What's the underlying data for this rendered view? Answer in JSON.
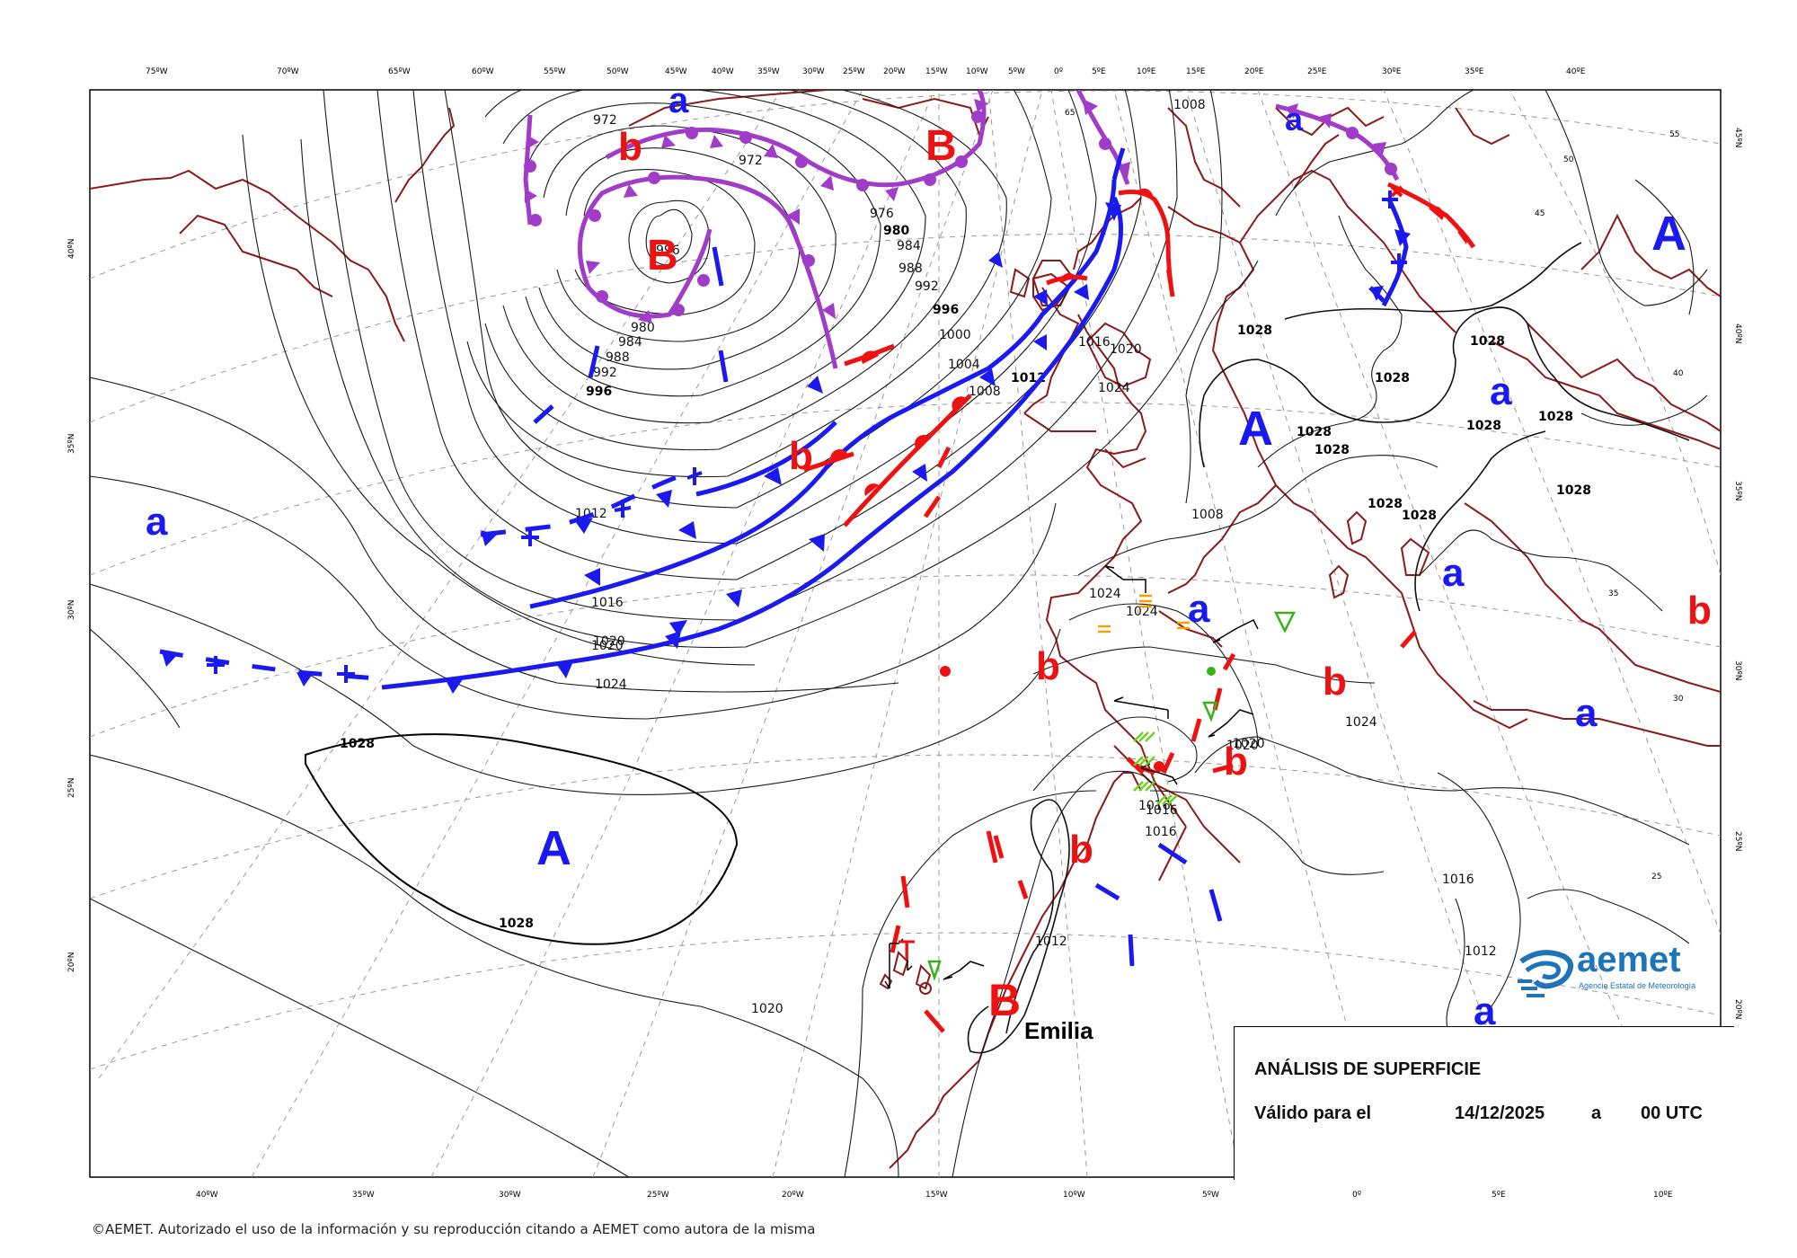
{
  "chart": {
    "title": "ANÁLISIS DE SUPERFICIE",
    "valid_label": "Válido para el",
    "date": "14/12/2025",
    "time_sep": "a",
    "time": "00 UTC"
  },
  "copyright": "©AEMET. Autorizado el uso de la información y su reproducción citando a AEMET como autora de la misma",
  "logo": {
    "word": "aemet",
    "subtitle": "Agencia Estatal de Meteorología"
  },
  "axes": {
    "top_labels": [
      "75ºW",
      "70ºW",
      "65ºW",
      "60ºW",
      "55ºW",
      "50ºW",
      "45ºW",
      "40ºW",
      "35ºW",
      "30ºW",
      "25ºW",
      "20ºW",
      "15ºW",
      "10ºW",
      "5ºW",
      "0º",
      "5ºE",
      "10ºE",
      "15ºE",
      "20ºE",
      "25ºE",
      "30ºE",
      "35ºE",
      "40ºE"
    ],
    "bottom_labels": [
      "40ºW",
      "35ºW",
      "30ºW",
      "25ºW",
      "20ºW",
      "15ºW",
      "10ºW",
      "5ºW",
      "0º",
      "5ºE",
      "10ºE"
    ],
    "left_labels": [
      "40ºN",
      "35ºN",
      "30ºN",
      "25ºN",
      "20ºN"
    ],
    "right_labels": [
      "45ºN",
      "40ºN",
      "35ºN",
      "30ºN",
      "25ºN",
      "20ºN"
    ],
    "inner_labels": [
      "65",
      "55",
      "50",
      "45",
      "40",
      "35",
      "30",
      "25"
    ]
  },
  "isobar_labels": [
    "972",
    "972",
    "980",
    "984",
    "988",
    "992",
    "996",
    "976",
    "980",
    "984",
    "988",
    "992",
    "996",
    "1000",
    "1004",
    "1008",
    "1012",
    "1016",
    "1020",
    "1024",
    "1028",
    "1028",
    "1008",
    "1012",
    "1016",
    "1020",
    "1024",
    "1028",
    "1028",
    "1028",
    "1028",
    "1028",
    "1028",
    "1028",
    "1028",
    "1028",
    "1028",
    "1008",
    "996",
    "1012",
    "1016",
    "1020",
    "1024",
    "1024",
    "1024",
    "1020",
    "1016",
    "1016",
    "1016",
    "1012",
    "1020",
    "1020",
    "968"
  ],
  "systems": {
    "highs": [
      "A",
      "A",
      "A",
      "A"
    ],
    "lows": [
      "B",
      "B",
      "B",
      "B"
    ],
    "rel_lows": [
      "b",
      "b",
      "b",
      "b",
      "b",
      "b",
      "b",
      "b"
    ],
    "rel_highs": [
      "a",
      "a",
      "a",
      "a",
      "a",
      "a",
      "a",
      "a"
    ]
  },
  "storm_name": "Emilia",
  "colors": {
    "coast": "#8b1a1a",
    "cold_front": "#1a1af0",
    "warm_front": "#ee1111",
    "occluded_front": "#a03cc8",
    "isobar": "#111111",
    "grid": "#999999",
    "logo": "#1d74b8"
  }
}
